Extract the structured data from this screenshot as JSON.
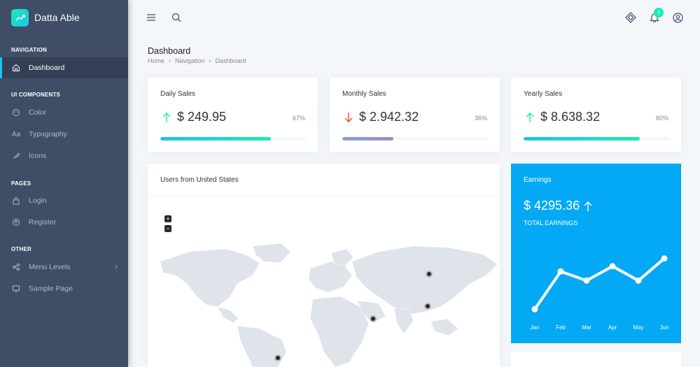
{
  "brand": {
    "name": "Datta Able"
  },
  "sidebar": {
    "sections": [
      {
        "caption": "NAVIGATION",
        "items": [
          {
            "label": "Dashboard",
            "icon": "home-icon",
            "active": true
          }
        ]
      },
      {
        "caption": "UI COMPONENTS",
        "items": [
          {
            "label": "Color",
            "icon": "droplet-icon"
          },
          {
            "label": "Typography",
            "icon": "type-icon"
          },
          {
            "label": "Icons",
            "icon": "feather-icon"
          }
        ]
      },
      {
        "caption": "PAGES",
        "items": [
          {
            "label": "Login",
            "icon": "lock-icon"
          },
          {
            "label": "Register",
            "icon": "user-plus-icon"
          }
        ]
      },
      {
        "caption": "OTHER",
        "items": [
          {
            "label": "Menu Levels",
            "icon": "menu-levels-icon"
          },
          {
            "label": "Sample Page",
            "icon": "monitor-icon"
          }
        ]
      }
    ]
  },
  "header": {
    "notification_count": "3"
  },
  "page": {
    "title": "Dashboard",
    "breadcrumb": [
      "Home",
      "Navigation",
      "Dashboard"
    ]
  },
  "stats": [
    {
      "title": "Daily Sales",
      "value": "$ 249.95",
      "pct": "67%",
      "progress": 0.76,
      "direction": "up",
      "color": "#1de9b6"
    },
    {
      "title": "Monthly Sales",
      "value": "$ 2.942.32",
      "pct": "36%",
      "progress": 0.35,
      "direction": "down",
      "color": "#a389d4"
    },
    {
      "title": "Yearly Sales",
      "value": "$ 8.638.32",
      "pct": "80%",
      "progress": 0.8,
      "direction": "up",
      "color": "#1de9b6"
    }
  ],
  "map": {
    "title": "Users from United States",
    "zoom_in": "+",
    "zoom_out": "−"
  },
  "earnings": {
    "title": "Earnings",
    "value": "$ 4295.36",
    "subtitle": "TOTAL EARNINGS",
    "chart": {
      "months": [
        "Jan",
        "Feb",
        "Mar",
        "Apr",
        "May",
        "Jun"
      ],
      "values": [
        2,
        31,
        24,
        35,
        24,
        41
      ]
    }
  },
  "colors": {
    "sidebar": "#3f4d67",
    "accent": "#04a9f5",
    "success": "#1de9b6",
    "danger": "#f44236"
  }
}
